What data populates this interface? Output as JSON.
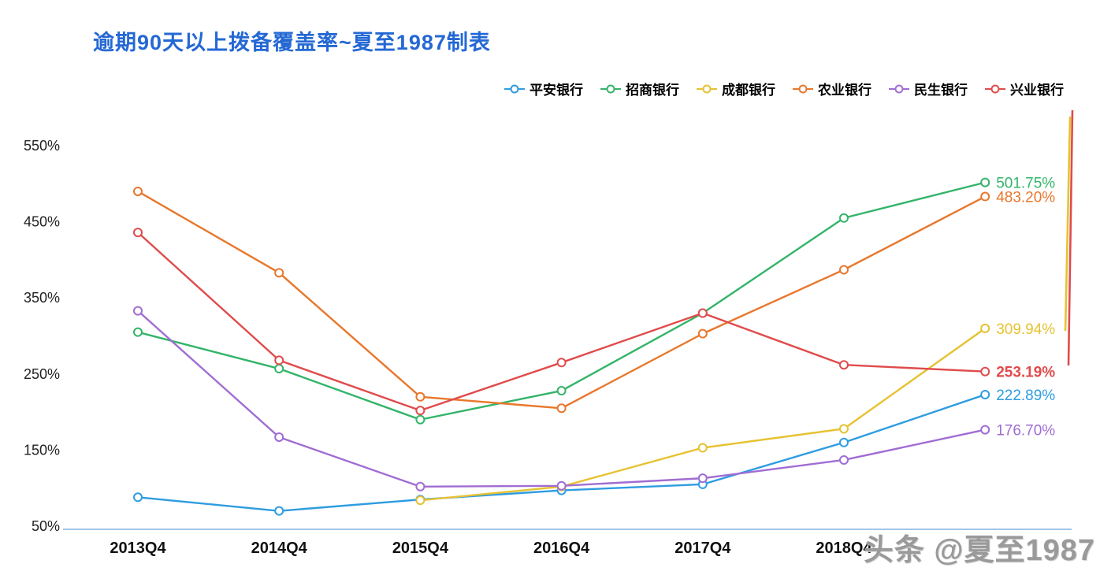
{
  "title": "逾期90天以上拨备覆盖率~夏至1987制表",
  "title_color": "#2468d4",
  "watermark": "头条 @夏至1987",
  "chart_data": {
    "type": "line",
    "title": "逾期90天以上拨备覆盖率~夏至1987制表",
    "legend_position": "top",
    "grid": false,
    "axis_line_color": "#9fc6e8",
    "ylim": [
      50,
      600
    ],
    "categories": [
      "2013Q4",
      "2014Q4",
      "2015Q4",
      "2016Q4",
      "2017Q4",
      "2018Q4",
      ""
    ],
    "ylabel_ticks": [
      "550%",
      "450%",
      "350%",
      "250%",
      "150%",
      "50%"
    ],
    "y_tick_values": [
      550,
      450,
      350,
      250,
      150,
      50
    ],
    "series": [
      {
        "name": "平安银行",
        "color": "#2e9ce1",
        "values": [
          88,
          70,
          85,
          97,
          105,
          160,
          222.89
        ],
        "end_label": "222.89%",
        "end_label_bold": false
      },
      {
        "name": "招商银行",
        "color": "#33b469",
        "values": [
          305,
          257,
          190,
          228,
          330,
          455,
          501.75
        ],
        "end_label": "501.75%",
        "end_label_bold": false
      },
      {
        "name": "成都银行",
        "color": "#e6c230",
        "values": [
          null,
          null,
          84,
          102,
          153,
          178,
          309.94
        ],
        "end_label": "309.94%",
        "end_label_bold": false
      },
      {
        "name": "农业银行",
        "color": "#e8772b",
        "values": [
          490,
          383,
          220,
          205,
          303,
          387,
          483.2
        ],
        "end_label": "483.20%",
        "end_label_bold": false
      },
      {
        "name": "民生银行",
        "color": "#a06dd3",
        "values": [
          333,
          167,
          102,
          103,
          113,
          137,
          176.7
        ],
        "end_label": "176.70%",
        "end_label_bold": false
      },
      {
        "name": "兴业银行",
        "color": "#e04b4b",
        "values": [
          436,
          268,
          202,
          265,
          330,
          262,
          253.19
        ],
        "end_label": "253.19%",
        "end_label_bold": true
      }
    ],
    "right_edge_clipped_lines": [
      "成都银行",
      "兴业银行"
    ]
  }
}
